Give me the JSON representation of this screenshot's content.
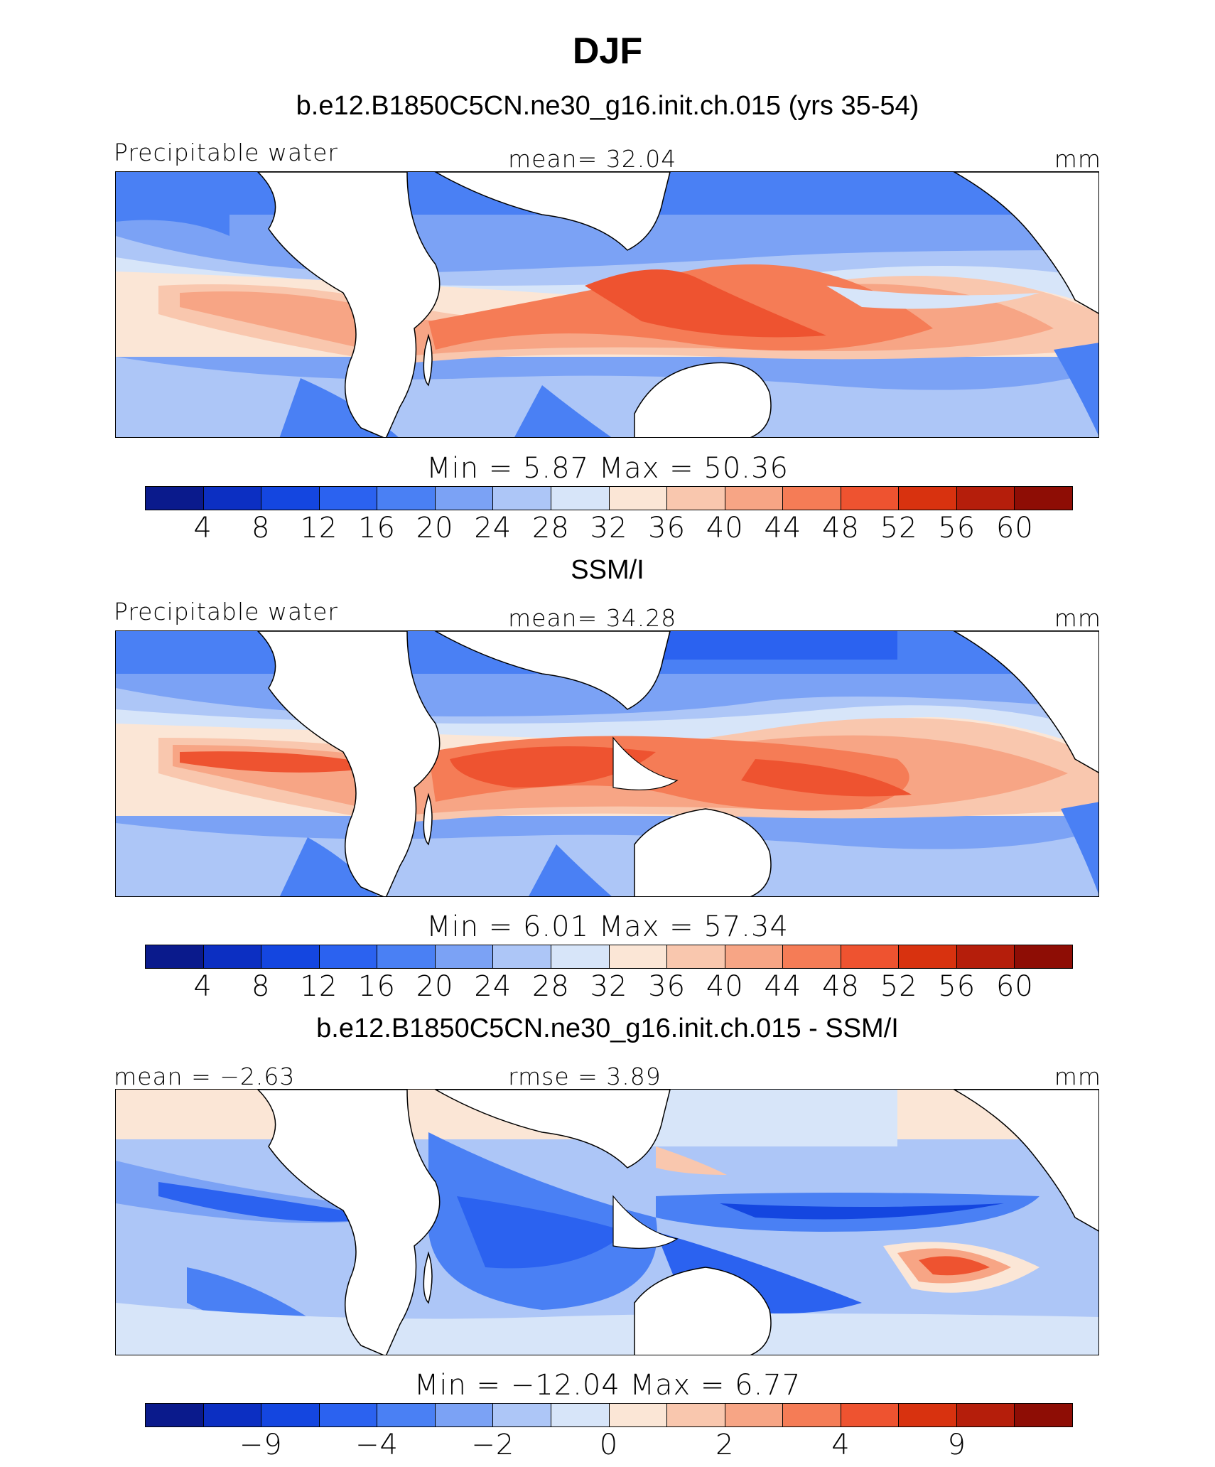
{
  "title": "DJF",
  "colors": {
    "palette": [
      "#0a1a8c",
      "#0c2fc2",
      "#1446e0",
      "#2b62f0",
      "#4a80f4",
      "#7ba2f5",
      "#adc6f7",
      "#d7e5f9",
      "#fbe6d6",
      "#f9c7ae",
      "#f7a585",
      "#f57c56",
      "#ee5330",
      "#d8320f",
      "#b51e0b",
      "#8e0d05"
    ],
    "land": "#ffffff",
    "coastline": "#000000"
  },
  "panels": [
    {
      "title": "b.e12.B1850C5CN.ne30_g16.init.ch.015 (yrs 35-54)",
      "left_label": "Precipitable water",
      "center_label": "mean=  32.04",
      "units": "mm",
      "minmax": "Min  =     5.87  Max  =    50.36",
      "tick_labels": [
        "4",
        "8",
        "12",
        "16",
        "20",
        "24",
        "28",
        "32",
        "36",
        "40",
        "44",
        "48",
        "52",
        "56",
        "60"
      ]
    },
    {
      "title": "SSM/I",
      "left_label": "Precipitable water",
      "center_label": "mean=  34.28",
      "units": "mm",
      "minmax": "Min  =     6.01  Max  =    57.34",
      "tick_labels": [
        "4",
        "8",
        "12",
        "16",
        "20",
        "24",
        "28",
        "32",
        "36",
        "40",
        "44",
        "48",
        "52",
        "56",
        "60"
      ]
    },
    {
      "title": "b.e12.B1850C5CN.ne30_g16.init.ch.015 - SSM/I",
      "left_label": "mean  =   −2.63",
      "center_label": "rmse  =     3.89",
      "units": "mm",
      "minmax": "Min  =  −12.04  Max  =     6.77",
      "tick_labels": [
        "−9",
        "−4",
        "−2",
        "0",
        "2",
        "4",
        "9"
      ]
    }
  ]
}
